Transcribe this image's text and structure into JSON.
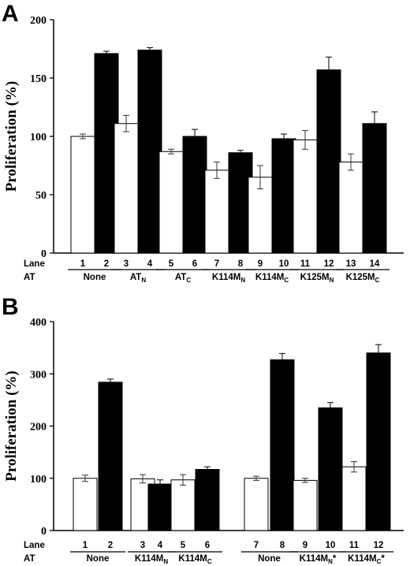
{
  "chart_data": [
    {
      "panel": "A",
      "type": "bar",
      "ylabel": "Proliferation (%)",
      "ylim": [
        0,
        200
      ],
      "yticks": [
        0,
        50,
        100,
        150,
        200
      ],
      "row_labels": {
        "lane": "Lane",
        "at": "AT"
      },
      "lanes": [
        "1",
        "2",
        "3",
        "4",
        "5",
        "6",
        "7",
        "8",
        "9",
        "10",
        "11",
        "12",
        "13",
        "14"
      ],
      "values": [
        100,
        171,
        111,
        174,
        87,
        100,
        71,
        86,
        65,
        98,
        97,
        157,
        78,
        111
      ],
      "errors": [
        2,
        2,
        7,
        2,
        2,
        6,
        7,
        2,
        10,
        4,
        8,
        11,
        7,
        10
      ],
      "fills": [
        "white",
        "black",
        "white",
        "black",
        "white",
        "black",
        "white",
        "black",
        "white",
        "black",
        "white",
        "black",
        "white",
        "black"
      ],
      "groups": [
        {
          "label": "None",
          "sub": "",
          "lanes": [
            0,
            1
          ]
        },
        {
          "label": "AT",
          "sub": "N",
          "lanes": [
            2,
            3
          ]
        },
        {
          "label": "AT",
          "sub": "C",
          "lanes": [
            4,
            5
          ]
        },
        {
          "label": "K114M",
          "sub": "N",
          "lanes": [
            6,
            7
          ]
        },
        {
          "label": "K114M",
          "sub": "C",
          "lanes": [
            8,
            9
          ]
        },
        {
          "label": "K125M",
          "sub": "N",
          "lanes": [
            10,
            11
          ]
        },
        {
          "label": "K125M",
          "sub": "C",
          "lanes": [
            12,
            13
          ]
        }
      ]
    },
    {
      "panel": "B",
      "type": "bar",
      "ylabel": "Proliferation (%)",
      "ylim": [
        0,
        400
      ],
      "yticks": [
        0,
        100,
        200,
        300,
        400
      ],
      "row_labels": {
        "lane": "Lane",
        "at": "AT"
      },
      "lanes": [
        "1",
        "2",
        "3",
        "4",
        "5",
        "6",
        "7",
        "8",
        "9",
        "10",
        "11",
        "12"
      ],
      "values": [
        100,
        284,
        99,
        89,
        97,
        117,
        100,
        327,
        96,
        235,
        122,
        340
      ],
      "errors": [
        6,
        6,
        8,
        8,
        10,
        5,
        4,
        12,
        4,
        10,
        10,
        16
      ],
      "fills": [
        "white",
        "black",
        "white",
        "black",
        "white",
        "black",
        "white",
        "black",
        "white",
        "black",
        "white",
        "black"
      ],
      "groups": [
        {
          "label": "None",
          "sub": "",
          "star": "",
          "lanes": [
            0,
            1
          ]
        },
        {
          "label": "K114M",
          "sub": "N",
          "star": "",
          "lanes": [
            2,
            3
          ]
        },
        {
          "label": "K114M",
          "sub": "C",
          "star": "",
          "lanes": [
            4,
            5
          ]
        },
        {
          "label": "None",
          "sub": "",
          "star": "",
          "lanes": [
            6,
            7
          ]
        },
        {
          "label": "K114M",
          "sub": "N",
          "star": "*",
          "lanes": [
            8,
            9
          ]
        },
        {
          "label": "K114M",
          "sub": "C",
          "star": "*",
          "lanes": [
            10,
            11
          ]
        }
      ]
    }
  ]
}
